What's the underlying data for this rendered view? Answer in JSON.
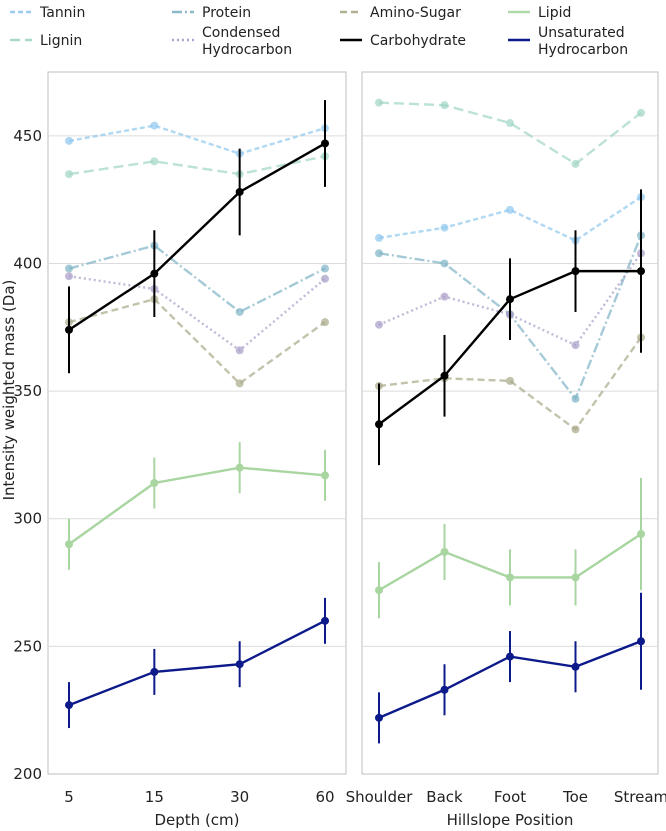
{
  "chart_data": {
    "type": "line",
    "ylabel": "Intensity weighted mass (Da)",
    "ylim": [
      200,
      475
    ],
    "yticks": [
      200,
      250,
      300,
      350,
      400,
      450
    ],
    "grid": "horizontal",
    "legend": {
      "placement": "top",
      "entries": [
        {
          "label": "Tannin",
          "color": "#8ec8ee",
          "dash": "5 3"
        },
        {
          "label": "Protein",
          "color": "#7fb3c6",
          "dash": "10 3 2 3"
        },
        {
          "label": "Amino-Sugar",
          "color": "#aaa888",
          "dash": "7 4"
        },
        {
          "label": "Lipid",
          "color": "#a8d5a0",
          "dash": ""
        },
        {
          "label": "Lignin",
          "color": "#9fd4c5",
          "dash": "10 5"
        },
        {
          "label": "Condensed Hydrocarbon",
          "color": "#a79bc6",
          "dash": "2 3"
        },
        {
          "label": "Carbohydrate",
          "color": "#000000",
          "dash": ""
        },
        {
          "label": "Unsaturated Hydrocarbon",
          "color": "#0d1a8a",
          "dash": ""
        }
      ]
    },
    "panels": [
      {
        "xlabel": "Depth (cm)",
        "categories": [
          "5",
          "15",
          "30",
          "60"
        ],
        "series": [
          {
            "name": "Tannin",
            "values": [
              448,
              454,
              443,
              453
            ]
          },
          {
            "name": "Lignin",
            "values": [
              435,
              440,
              435,
              442
            ]
          },
          {
            "name": "Protein",
            "values": [
              398,
              407,
              381,
              398
            ]
          },
          {
            "name": "Condensed Hydrocarbon",
            "values": [
              395,
              390,
              366,
              394
            ]
          },
          {
            "name": "Amino-Sugar",
            "values": [
              377,
              386,
              353,
              377
            ]
          },
          {
            "name": "Carbohydrate",
            "values": [
              374,
              396,
              428,
              447
            ],
            "err": [
              17,
              17,
              17,
              17
            ]
          },
          {
            "name": "Lipid",
            "values": [
              290,
              314,
              320,
              317
            ],
            "err": [
              10,
              10,
              10,
              10
            ]
          },
          {
            "name": "Unsaturated Hydrocarbon",
            "values": [
              227,
              240,
              243,
              260
            ],
            "err": [
              9,
              9,
              9,
              9
            ]
          }
        ]
      },
      {
        "xlabel": "Hillslope Position",
        "categories": [
          "Shoulder",
          "Back",
          "Foot",
          "Toe",
          "Stream"
        ],
        "series": [
          {
            "name": "Lignin",
            "values": [
              463,
              462,
              455,
              439,
              459
            ]
          },
          {
            "name": "Tannin",
            "values": [
              410,
              414,
              421,
              409,
              426
            ]
          },
          {
            "name": "Protein",
            "values": [
              404,
              400,
              380,
              347,
              411
            ]
          },
          {
            "name": "Condensed Hydrocarbon",
            "values": [
              376,
              387,
              380,
              368,
              404
            ]
          },
          {
            "name": "Amino-Sugar",
            "values": [
              352,
              355,
              354,
              335,
              371
            ]
          },
          {
            "name": "Carbohydrate",
            "values": [
              337,
              356,
              386,
              397,
              397
            ],
            "err": [
              16,
              16,
              16,
              16,
              32
            ]
          },
          {
            "name": "Lipid",
            "values": [
              272,
              287,
              277,
              277,
              294
            ],
            "err": [
              11,
              11,
              11,
              11,
              22
            ]
          },
          {
            "name": "Unsaturated Hydrocarbon",
            "values": [
              222,
              233,
              246,
              242,
              252
            ],
            "err": [
              10,
              10,
              10,
              10,
              19
            ]
          }
        ]
      }
    ]
  }
}
